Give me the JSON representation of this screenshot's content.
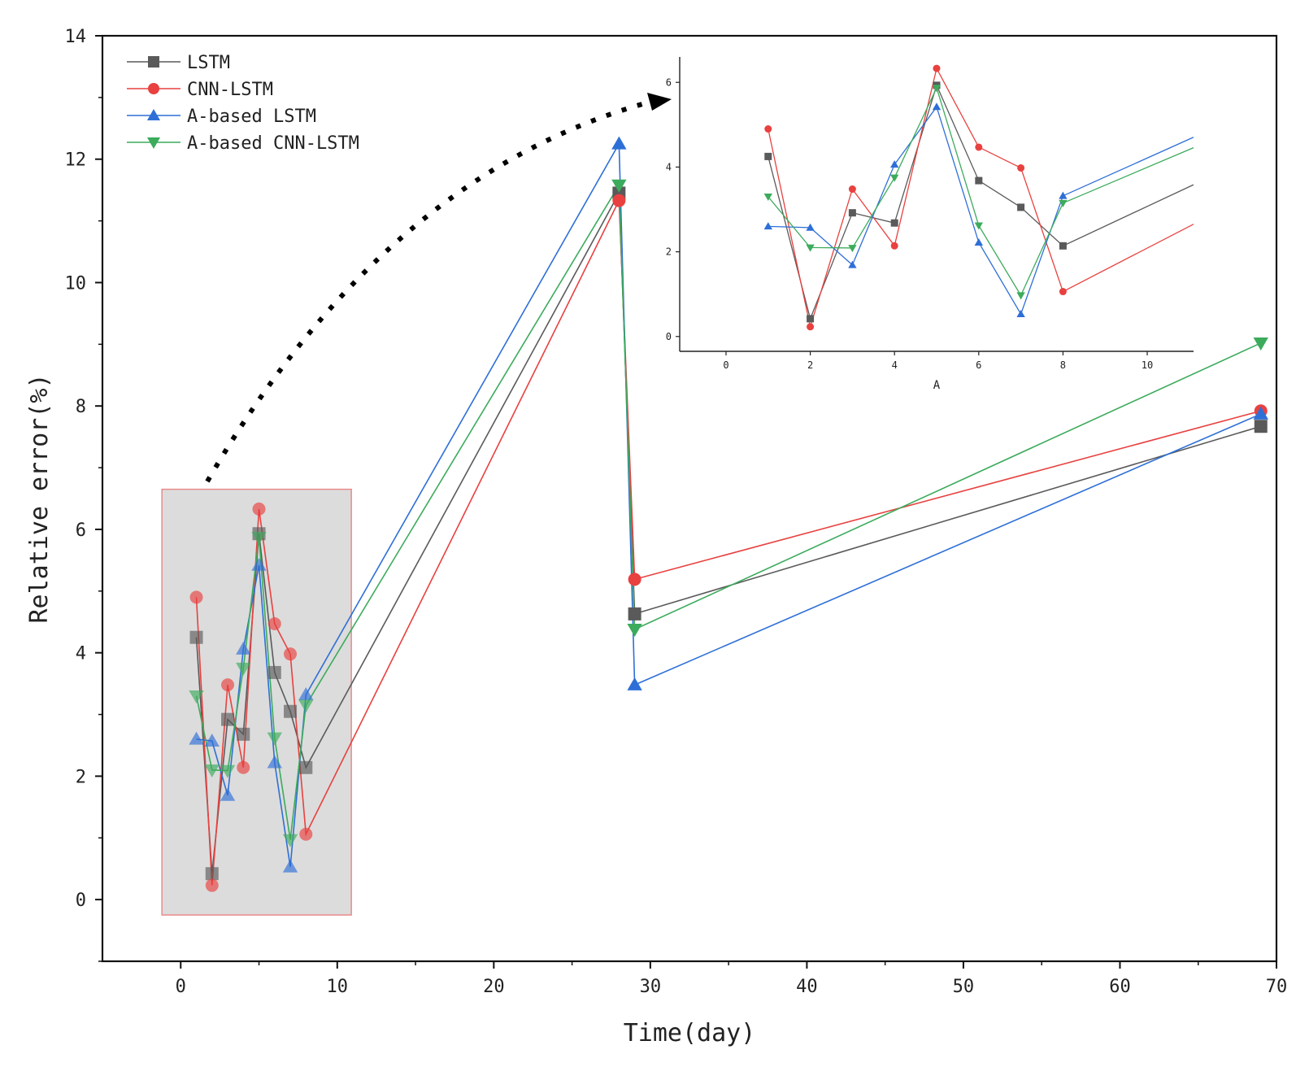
{
  "chart_data": {
    "type": "line",
    "xlabel": "Time(day)",
    "ylabel": "Relative error(%)",
    "xlim": [
      -5,
      70
    ],
    "ylim": [
      -1,
      14
    ],
    "xticks": [
      0,
      10,
      20,
      30,
      40,
      50,
      60,
      70
    ],
    "yticks": [
      0,
      2,
      4,
      6,
      8,
      10,
      12,
      14
    ],
    "legend_position": "top-left",
    "series": [
      {
        "name": "LSTM",
        "color": "#5a5a5a",
        "marker": "square",
        "x": [
          1,
          2,
          3,
          4,
          5,
          6,
          7,
          8,
          28,
          29,
          69
        ],
        "values": [
          4.25,
          0.42,
          2.92,
          2.68,
          5.93,
          3.68,
          3.05,
          2.14,
          11.45,
          4.63,
          7.67
        ]
      },
      {
        "name": "CNN-LSTM",
        "color": "#e8413f",
        "marker": "circle",
        "x": [
          1,
          2,
          3,
          4,
          5,
          6,
          7,
          8,
          28,
          29,
          69
        ],
        "values": [
          4.9,
          0.23,
          3.48,
          2.14,
          6.33,
          4.47,
          3.98,
          1.06,
          11.33,
          5.19,
          7.92
        ]
      },
      {
        "name": "A-based LSTM",
        "color": "#2e6fd7",
        "marker": "triangle-up",
        "x": [
          1,
          2,
          3,
          4,
          5,
          6,
          7,
          8,
          28,
          29,
          69
        ],
        "values": [
          2.6,
          2.57,
          1.69,
          4.06,
          5.42,
          2.22,
          0.53,
          3.32,
          12.25,
          3.48,
          7.87
        ]
      },
      {
        "name": "A-based CNN-LSTM",
        "color": "#3cab5c",
        "marker": "triangle-down",
        "x": [
          1,
          2,
          3,
          4,
          5,
          6,
          7,
          8,
          28,
          29,
          69
        ],
        "values": [
          3.3,
          2.1,
          2.09,
          3.75,
          5.87,
          2.62,
          0.97,
          3.15,
          11.58,
          4.38,
          9.02
        ]
      }
    ],
    "zoom_box": {
      "xlim": [
        -1.2,
        10.9
      ],
      "ylim": [
        -0.25,
        6.65
      ]
    },
    "inset": {
      "xlabel": "A",
      "xlim": [
        -1.1,
        11.1
      ],
      "ylim": [
        -0.35,
        6.6
      ],
      "xticks": [
        0,
        2,
        4,
        6,
        8,
        10
      ],
      "yticks": [
        0,
        2,
        4,
        6
      ],
      "x_range_shown": [
        1,
        8
      ],
      "line_extension_to": 11.1
    }
  }
}
